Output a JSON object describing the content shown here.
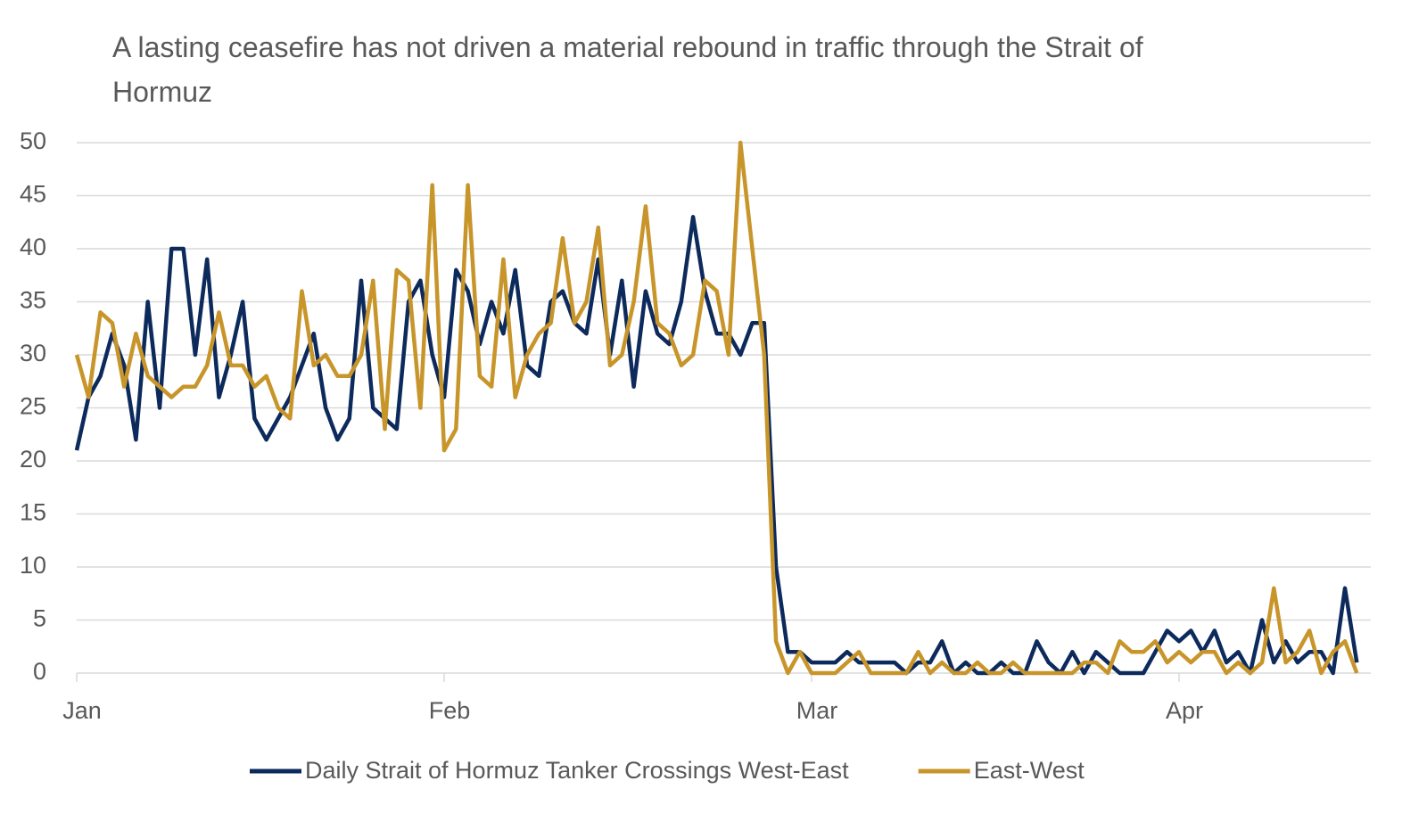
{
  "chart_data": {
    "type": "line",
    "title": "A lasting ceasefire has not driven a material rebound in traffic through the Strait of Hormuz",
    "categories": [
      "Jan",
      null,
      null,
      null,
      null,
      null,
      null,
      null,
      null,
      null,
      null,
      null,
      null,
      null,
      null,
      null,
      null,
      null,
      null,
      null,
      null,
      null,
      null,
      null,
      null,
      null,
      null,
      null,
      null,
      null,
      null,
      "Feb",
      null,
      null,
      null,
      null,
      null,
      null,
      null,
      null,
      null,
      null,
      null,
      null,
      null,
      null,
      null,
      null,
      null,
      null,
      null,
      null,
      null,
      null,
      null,
      null,
      null,
      null,
      null,
      null,
      null,
      null,
      "Mar",
      null,
      null,
      null,
      null,
      null,
      null,
      null,
      null,
      null,
      null,
      null,
      null,
      null,
      null,
      null,
      null,
      null,
      null,
      null,
      null,
      null,
      null,
      null,
      null,
      null,
      null,
      null,
      null,
      null,
      null,
      "Apr",
      null,
      null,
      null,
      null,
      null,
      null,
      null,
      null,
      null,
      null,
      null,
      null,
      null,
      null,
      null
    ],
    "series": [
      {
        "name": "Daily Strait of Hormuz Tanker Crossings West-East",
        "color": "#0d2a5c",
        "values": [
          21,
          26,
          28,
          32,
          29,
          22,
          35,
          25,
          40,
          40,
          30,
          39,
          26,
          30,
          35,
          24,
          22,
          24,
          26,
          29,
          32,
          25,
          22,
          24,
          37,
          25,
          24,
          23,
          35,
          37,
          30,
          26,
          38,
          36,
          31,
          35,
          32,
          38,
          29,
          28,
          35,
          36,
          33,
          32,
          39,
          30,
          37,
          27,
          36,
          32,
          31,
          35,
          43,
          36,
          32,
          32,
          30,
          33,
          33,
          10,
          2,
          2,
          1,
          1,
          1,
          2,
          1,
          1,
          1,
          1,
          0,
          1,
          1,
          3,
          0,
          1,
          0,
          0,
          1,
          0,
          0,
          3,
          1,
          0,
          2,
          0,
          2,
          1,
          0,
          0,
          0,
          2,
          4,
          3,
          4,
          2,
          4,
          1,
          2,
          0,
          5,
          1,
          3,
          1,
          2,
          2,
          0,
          8,
          1
        ]
      },
      {
        "name": "East-West",
        "color": "#c8952a",
        "values": [
          30,
          26,
          34,
          33,
          27,
          32,
          28,
          27,
          26,
          27,
          27,
          29,
          34,
          29,
          29,
          27,
          28,
          25,
          24,
          36,
          29,
          30,
          28,
          28,
          30,
          37,
          23,
          38,
          37,
          25,
          46,
          21,
          23,
          46,
          28,
          27,
          39,
          26,
          30,
          32,
          33,
          41,
          33,
          35,
          42,
          29,
          30,
          35,
          44,
          33,
          32,
          29,
          30,
          37,
          36,
          30,
          50,
          40,
          30,
          3,
          0,
          2,
          0,
          0,
          0,
          1,
          2,
          0,
          0,
          0,
          0,
          2,
          0,
          1,
          0,
          0,
          1,
          0,
          0,
          1,
          0,
          0,
          0,
          0,
          0,
          1,
          1,
          0,
          3,
          2,
          2,
          3,
          1,
          2,
          1,
          2,
          2,
          0,
          1,
          0,
          1,
          8,
          1,
          2,
          4,
          0,
          2,
          3,
          0
        ]
      }
    ],
    "ylim": [
      0,
      50
    ],
    "yticks": [
      0,
      5,
      10,
      15,
      20,
      25,
      30,
      35,
      40,
      45,
      50
    ],
    "grid": true
  }
}
